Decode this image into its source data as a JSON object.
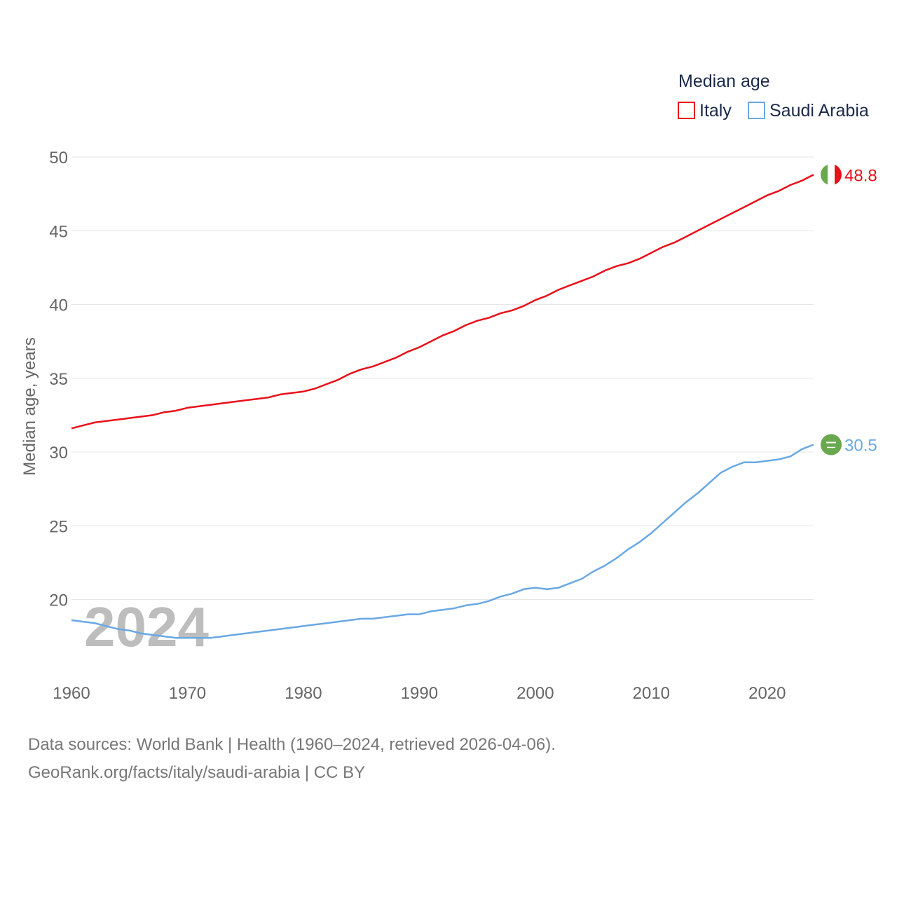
{
  "chart_data": {
    "type": "line",
    "title": "",
    "legend_title": "Median age",
    "legend_position": "top-right",
    "ylabel": "Median age, years",
    "xlabel": "",
    "xlim": [
      1960,
      2024
    ],
    "ylim": [
      15,
      50
    ],
    "y_ticks": [
      "20",
      "25",
      "30",
      "35",
      "40",
      "45",
      "50"
    ],
    "x_ticks": [
      "1960",
      "1970",
      "1980",
      "1990",
      "2000",
      "2010",
      "2020"
    ],
    "year_watermark": "2024",
    "x": [
      1960,
      1961,
      1962,
      1963,
      1964,
      1965,
      1966,
      1967,
      1968,
      1969,
      1970,
      1971,
      1972,
      1973,
      1974,
      1975,
      1976,
      1977,
      1978,
      1979,
      1980,
      1981,
      1982,
      1983,
      1984,
      1985,
      1986,
      1987,
      1988,
      1989,
      1990,
      1991,
      1992,
      1993,
      1994,
      1995,
      1996,
      1997,
      1998,
      1999,
      2000,
      2001,
      2002,
      2003,
      2004,
      2005,
      2006,
      2007,
      2008,
      2009,
      2010,
      2011,
      2012,
      2013,
      2014,
      2015,
      2016,
      2017,
      2018,
      2019,
      2020,
      2021,
      2022,
      2023,
      2024
    ],
    "series": [
      {
        "name": "Italy",
        "color": "#e8101a",
        "end_label": "48.8",
        "values": [
          31.6,
          31.8,
          32.0,
          32.1,
          32.2,
          32.3,
          32.4,
          32.5,
          32.7,
          32.8,
          33.0,
          33.1,
          33.2,
          33.3,
          33.4,
          33.5,
          33.6,
          33.7,
          33.9,
          34.0,
          34.1,
          34.3,
          34.6,
          34.9,
          35.3,
          35.6,
          35.8,
          36.1,
          36.4,
          36.8,
          37.1,
          37.5,
          37.9,
          38.2,
          38.6,
          38.9,
          39.1,
          39.4,
          39.6,
          39.9,
          40.3,
          40.6,
          41.0,
          41.3,
          41.6,
          41.9,
          42.3,
          42.6,
          42.8,
          43.1,
          43.5,
          43.9,
          44.2,
          44.6,
          45.0,
          45.4,
          45.8,
          46.2,
          46.6,
          47.0,
          47.4,
          47.7,
          48.1,
          48.4,
          48.8
        ]
      },
      {
        "name": "Saudi Arabia",
        "color": "#6aa8e4",
        "end_label": "30.5",
        "values": [
          18.6,
          18.5,
          18.4,
          18.2,
          18.0,
          17.9,
          17.7,
          17.6,
          17.5,
          17.4,
          17.4,
          17.4,
          17.4,
          17.5,
          17.6,
          17.7,
          17.8,
          17.9,
          18.0,
          18.1,
          18.2,
          18.3,
          18.4,
          18.5,
          18.6,
          18.7,
          18.7,
          18.8,
          18.9,
          19.0,
          19.0,
          19.2,
          19.3,
          19.4,
          19.6,
          19.7,
          19.9,
          20.2,
          20.4,
          20.7,
          20.8,
          20.7,
          20.8,
          21.1,
          21.4,
          21.9,
          22.3,
          22.8,
          23.4,
          23.9,
          24.5,
          25.2,
          25.9,
          26.6,
          27.2,
          27.9,
          28.6,
          29.0,
          29.3,
          29.3,
          29.4,
          29.5,
          29.7,
          30.2,
          30.5
        ]
      }
    ]
  },
  "footer": {
    "sources": "Data sources: World Bank | Health (1960–2024, retrieved 2026-04-06).",
    "license": "GeoRank.org/facts/italy/saudi-arabia | CC BY"
  }
}
